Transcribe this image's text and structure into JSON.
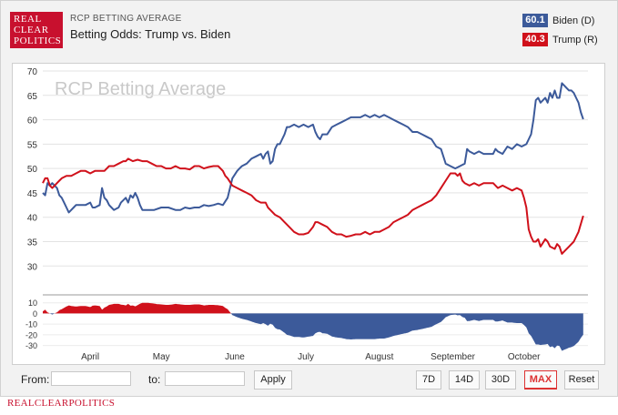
{
  "brand": {
    "logo_lines": [
      "REAL",
      "CLEAR",
      "POLITICS"
    ],
    "footer": "REALCLEARPOLITICS",
    "color": "#c8102e"
  },
  "header": {
    "subtitle": "RCP BETTING AVERAGE",
    "title": "Betting Odds: Trump vs. Biden"
  },
  "legend": [
    {
      "value": "60.1",
      "label": "Biden (D)",
      "color": "#3c5a9a"
    },
    {
      "value": "40.3",
      "label": "Trump (R)",
      "color": "#d0111b"
    }
  ],
  "controls": {
    "from_label": "From:",
    "to_label": "to:",
    "from_value": "",
    "to_value": "",
    "apply_label": "Apply",
    "range_buttons": [
      {
        "label": "7D",
        "active": false
      },
      {
        "label": "14D",
        "active": false
      },
      {
        "label": "30D",
        "active": false
      },
      {
        "label": "MAX",
        "active": true
      },
      {
        "label": "Reset",
        "active": false
      }
    ]
  },
  "chart_data": {
    "type": "line",
    "watermark": "RCP Betting Average",
    "x_unit": "days from start of range",
    "x_range": [
      0,
      230
    ],
    "months": [
      {
        "label": "April",
        "x": 20
      },
      {
        "label": "May",
        "x": 50
      },
      {
        "label": "June",
        "x": 81
      },
      {
        "label": "July",
        "x": 111
      },
      {
        "label": "August",
        "x": 142
      },
      {
        "label": "September",
        "x": 173
      },
      {
        "label": "October",
        "x": 203
      }
    ],
    "ylim": [
      28,
      70
    ],
    "yticks": [
      30,
      35,
      40,
      45,
      50,
      55,
      60,
      65,
      70
    ],
    "spread_ylim": [
      -32,
      14
    ],
    "spread_yticks": [
      10,
      0,
      -10,
      -20,
      -30
    ],
    "grid": true,
    "series": [
      {
        "name": "Biden (D)",
        "color": "#3c5a9a",
        "points": [
          [
            0,
            45
          ],
          [
            1,
            44.5
          ],
          [
            2,
            47
          ],
          [
            3,
            46.5
          ],
          [
            4,
            47
          ],
          [
            5,
            46.5
          ],
          [
            6,
            46
          ],
          [
            7,
            44.5
          ],
          [
            8,
            44
          ],
          [
            9,
            43
          ],
          [
            10,
            42
          ],
          [
            11,
            41
          ],
          [
            12,
            41.5
          ],
          [
            13,
            42
          ],
          [
            14,
            42.5
          ],
          [
            16,
            42.5
          ],
          [
            18,
            42.5
          ],
          [
            20,
            43
          ],
          [
            21,
            42
          ],
          [
            22,
            42
          ],
          [
            24,
            42.5
          ],
          [
            25,
            46
          ],
          [
            26,
            44
          ],
          [
            27,
            43.5
          ],
          [
            28,
            42.5
          ],
          [
            29,
            42
          ],
          [
            30,
            41.5
          ],
          [
            32,
            42
          ],
          [
            33,
            43
          ],
          [
            35,
            44
          ],
          [
            36,
            43
          ],
          [
            37,
            44.5
          ],
          [
            38,
            44
          ],
          [
            39,
            45
          ],
          [
            40,
            44
          ],
          [
            41,
            42.5
          ],
          [
            42,
            41.5
          ],
          [
            45,
            41.5
          ],
          [
            47,
            41.5
          ],
          [
            50,
            42
          ],
          [
            53,
            42
          ],
          [
            56,
            41.5
          ],
          [
            58,
            41.5
          ],
          [
            60,
            42
          ],
          [
            62,
            41.8
          ],
          [
            64,
            42
          ],
          [
            66,
            42
          ],
          [
            68,
            42.5
          ],
          [
            70,
            42.3
          ],
          [
            72,
            42.5
          ],
          [
            74,
            42.8
          ],
          [
            76,
            42.5
          ],
          [
            78,
            44
          ],
          [
            79,
            46
          ],
          [
            80,
            48
          ],
          [
            82,
            49.5
          ],
          [
            83,
            50
          ],
          [
            84,
            50.5
          ],
          [
            86,
            51
          ],
          [
            88,
            52
          ],
          [
            90,
            52.5
          ],
          [
            92,
            53
          ],
          [
            93,
            52
          ],
          [
            94,
            53
          ],
          [
            95,
            53.5
          ],
          [
            96,
            51
          ],
          [
            97,
            51.5
          ],
          [
            98,
            54
          ],
          [
            99,
            55
          ],
          [
            100,
            55
          ],
          [
            101,
            56
          ],
          [
            102,
            57
          ],
          [
            103,
            58.5
          ],
          [
            104,
            58.5
          ],
          [
            106,
            59
          ],
          [
            108,
            58.5
          ],
          [
            110,
            59
          ],
          [
            112,
            58.5
          ],
          [
            114,
            59
          ],
          [
            115,
            57.5
          ],
          [
            116,
            56.5
          ],
          [
            117,
            56
          ],
          [
            118,
            57
          ],
          [
            120,
            57
          ],
          [
            122,
            58.5
          ],
          [
            124,
            59
          ],
          [
            126,
            59.5
          ],
          [
            128,
            60
          ],
          [
            130,
            60.5
          ],
          [
            132,
            60.5
          ],
          [
            134,
            60.5
          ],
          [
            136,
            61
          ],
          [
            138,
            60.5
          ],
          [
            140,
            61
          ],
          [
            142,
            60.5
          ],
          [
            144,
            61
          ],
          [
            146,
            60.5
          ],
          [
            148,
            60
          ],
          [
            150,
            59.5
          ],
          [
            152,
            59
          ],
          [
            154,
            58.5
          ],
          [
            156,
            57.5
          ],
          [
            158,
            57.5
          ],
          [
            160,
            57
          ],
          [
            162,
            56.5
          ],
          [
            164,
            56
          ],
          [
            166,
            54.5
          ],
          [
            168,
            54
          ],
          [
            170,
            51
          ],
          [
            172,
            50.5
          ],
          [
            174,
            50
          ],
          [
            176,
            50.5
          ],
          [
            178,
            51
          ],
          [
            179,
            54
          ],
          [
            180,
            53.5
          ],
          [
            182,
            53
          ],
          [
            184,
            53.5
          ],
          [
            186,
            53
          ],
          [
            188,
            53
          ],
          [
            190,
            53
          ],
          [
            191,
            54
          ],
          [
            192,
            53.5
          ],
          [
            194,
            53
          ],
          [
            196,
            54.5
          ],
          [
            198,
            54
          ],
          [
            200,
            55
          ],
          [
            202,
            54.5
          ],
          [
            204,
            55
          ],
          [
            205,
            56
          ],
          [
            206,
            57
          ],
          [
            207,
            60
          ],
          [
            208,
            64
          ],
          [
            209,
            64.5
          ],
          [
            210,
            63.5
          ],
          [
            212,
            64.5
          ],
          [
            213,
            63.5
          ],
          [
            214,
            65.5
          ],
          [
            215,
            64.5
          ],
          [
            216,
            66
          ],
          [
            217,
            64.5
          ],
          [
            218,
            64.5
          ],
          [
            219,
            67.5
          ],
          [
            220,
            67
          ],
          [
            221,
            66.5
          ],
          [
            222,
            66
          ],
          [
            223,
            66
          ],
          [
            224,
            65.5
          ],
          [
            225,
            64.5
          ],
          [
            226,
            63.5
          ],
          [
            227,
            61.5
          ],
          [
            228,
            60.1
          ]
        ]
      },
      {
        "name": "Trump (R)",
        "color": "#d0111b",
        "points": [
          [
            0,
            47
          ],
          [
            1,
            48
          ],
          [
            2,
            48
          ],
          [
            3,
            46.5
          ],
          [
            4,
            46
          ],
          [
            5,
            46.5
          ],
          [
            6,
            47
          ],
          [
            7,
            47.5
          ],
          [
            8,
            48
          ],
          [
            10,
            48.5
          ],
          [
            12,
            48.5
          ],
          [
            14,
            49
          ],
          [
            16,
            49.5
          ],
          [
            18,
            49.5
          ],
          [
            20,
            49
          ],
          [
            22,
            49.5
          ],
          [
            24,
            49.5
          ],
          [
            26,
            49.5
          ],
          [
            28,
            50.5
          ],
          [
            30,
            50.5
          ],
          [
            32,
            51
          ],
          [
            34,
            51.5
          ],
          [
            35,
            51.5
          ],
          [
            36,
            52
          ],
          [
            38,
            51.5
          ],
          [
            40,
            51.8
          ],
          [
            42,
            51.5
          ],
          [
            44,
            51.5
          ],
          [
            46,
            51
          ],
          [
            48,
            50.5
          ],
          [
            50,
            50.5
          ],
          [
            52,
            50
          ],
          [
            54,
            50
          ],
          [
            56,
            50.5
          ],
          [
            58,
            50
          ],
          [
            60,
            50
          ],
          [
            62,
            49.8
          ],
          [
            64,
            50.5
          ],
          [
            66,
            50.5
          ],
          [
            68,
            50
          ],
          [
            70,
            50.3
          ],
          [
            72,
            50.5
          ],
          [
            74,
            50.5
          ],
          [
            76,
            49.5
          ],
          [
            77,
            48.5
          ],
          [
            78,
            48
          ],
          [
            80,
            46.5
          ],
          [
            82,
            46
          ],
          [
            84,
            45.5
          ],
          [
            86,
            45
          ],
          [
            88,
            44.5
          ],
          [
            90,
            43.5
          ],
          [
            92,
            43
          ],
          [
            94,
            43
          ],
          [
            95,
            42
          ],
          [
            96,
            41.5
          ],
          [
            98,
            40.5
          ],
          [
            100,
            40
          ],
          [
            102,
            39
          ],
          [
            104,
            38
          ],
          [
            106,
            37
          ],
          [
            108,
            36.5
          ],
          [
            110,
            36.5
          ],
          [
            112,
            36.8
          ],
          [
            114,
            38
          ],
          [
            115,
            39
          ],
          [
            116,
            39
          ],
          [
            118,
            38.5
          ],
          [
            120,
            38
          ],
          [
            122,
            37
          ],
          [
            124,
            36.5
          ],
          [
            126,
            36.5
          ],
          [
            128,
            36
          ],
          [
            130,
            36.2
          ],
          [
            132,
            36.5
          ],
          [
            134,
            36.5
          ],
          [
            136,
            37
          ],
          [
            138,
            36.5
          ],
          [
            140,
            37
          ],
          [
            142,
            37
          ],
          [
            144,
            37.5
          ],
          [
            146,
            38
          ],
          [
            148,
            39
          ],
          [
            150,
            39.5
          ],
          [
            152,
            40
          ],
          [
            154,
            40.5
          ],
          [
            156,
            41.5
          ],
          [
            158,
            42
          ],
          [
            160,
            42.5
          ],
          [
            162,
            43
          ],
          [
            164,
            43.5
          ],
          [
            166,
            44.5
          ],
          [
            168,
            46
          ],
          [
            170,
            47.5
          ],
          [
            172,
            49
          ],
          [
            174,
            49
          ],
          [
            175,
            48.5
          ],
          [
            176,
            49
          ],
          [
            177,
            47.5
          ],
          [
            178,
            47
          ],
          [
            180,
            46.5
          ],
          [
            182,
            47
          ],
          [
            184,
            46.5
          ],
          [
            186,
            47
          ],
          [
            188,
            47
          ],
          [
            190,
            47
          ],
          [
            192,
            46
          ],
          [
            194,
            46.5
          ],
          [
            196,
            46
          ],
          [
            198,
            45.5
          ],
          [
            200,
            46
          ],
          [
            202,
            45.5
          ],
          [
            203,
            44
          ],
          [
            204,
            42
          ],
          [
            205,
            37.5
          ],
          [
            206,
            36
          ],
          [
            207,
            35
          ],
          [
            208,
            35
          ],
          [
            209,
            35.5
          ],
          [
            210,
            34
          ],
          [
            212,
            35.5
          ],
          [
            213,
            35
          ],
          [
            214,
            34
          ],
          [
            216,
            33.5
          ],
          [
            217,
            34.5
          ],
          [
            218,
            34
          ],
          [
            219,
            32.5
          ],
          [
            220,
            33
          ],
          [
            222,
            34
          ],
          [
            224,
            35
          ],
          [
            226,
            37
          ],
          [
            228,
            40.3
          ]
        ]
      }
    ]
  }
}
